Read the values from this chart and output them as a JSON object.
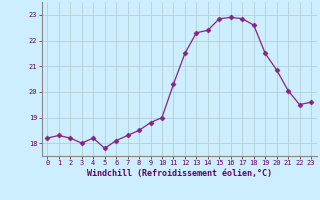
{
  "x": [
    0,
    1,
    2,
    3,
    4,
    5,
    6,
    7,
    8,
    9,
    10,
    11,
    12,
    13,
    14,
    15,
    16,
    17,
    18,
    19,
    20,
    21,
    22,
    23
  ],
  "y": [
    18.2,
    18.3,
    18.2,
    18.0,
    18.2,
    17.8,
    18.1,
    18.3,
    18.5,
    18.8,
    19.0,
    20.3,
    21.5,
    22.3,
    22.4,
    22.85,
    22.9,
    22.85,
    22.6,
    21.5,
    20.85,
    20.05,
    19.5,
    19.6
  ],
  "line_color": "#882288",
  "marker": "D",
  "marker_size": 2.5,
  "bg_color": "#cceeff",
  "grid_color": "#aacccc",
  "xlabel": "Windchill (Refroidissement éolien,°C)",
  "ylim": [
    17.5,
    23.5
  ],
  "xlim": [
    -0.5,
    23.5
  ],
  "yticks": [
    18,
    19,
    20,
    21,
    22,
    23
  ],
  "xticks": [
    0,
    1,
    2,
    3,
    4,
    5,
    6,
    7,
    8,
    9,
    10,
    11,
    12,
    13,
    14,
    15,
    16,
    17,
    18,
    19,
    20,
    21,
    22,
    23
  ],
  "xlabel_fontsize": 6,
  "tick_fontsize": 5,
  "xlabel_color": "#660066"
}
